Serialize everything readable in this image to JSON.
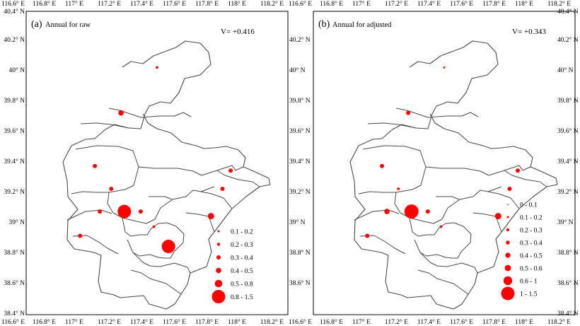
{
  "colors": {
    "dot": "#ff0000",
    "boundary": "#4a4a4a",
    "frame": "#000000"
  },
  "axes": {
    "lon_ticks": [
      "116.6° E",
      "116.8° E",
      "117° E",
      "117.2° E",
      "117.4° E",
      "117.6° E",
      "117.8° E",
      "118° E",
      "118.2° E"
    ],
    "lat_ticks_left": [
      "40.4° N",
      "40.2° N",
      "40° N",
      "39.8° N",
      "39.6° N",
      "39.4° N",
      "39.2° N",
      "39° N",
      "38.8° N",
      "38.6° N",
      "38.4° N"
    ],
    "lat_ticks_mid": [
      "40.2° N",
      "40° N",
      "39.8° N",
      "39.6° N",
      "39.4° N",
      "39.2° N",
      "39° N",
      "38.8° N",
      "38.6° N"
    ],
    "lat_ticks_right": [
      "40.4° N",
      "40.2° N",
      "40° N",
      "39.8° N",
      "39.6° N",
      "39.4° N",
      "39.2° N",
      "39° N",
      "38.8° N",
      "38.6° N",
      "38.4° N"
    ]
  },
  "panels": [
    {
      "id": "a",
      "label": "(a)",
      "subtitle": "Annual for raw",
      "v_value": "V= +0.416",
      "legend": [
        {
          "label": "0.1 - 0.2",
          "size": 1
        },
        {
          "label": "0.2 - 0.3",
          "size": 2
        },
        {
          "label": "0.3 - 0.4",
          "size": 3
        },
        {
          "label": "0.4 - 0.5",
          "size": 4
        },
        {
          "label": "0.5 - 0.8",
          "size": 5
        },
        {
          "label": "0.8 - 1.5",
          "size": 6
        }
      ],
      "stations": [
        {
          "lon": 117.4,
          "lat": 40.03,
          "size": 1
        },
        {
          "lon": 117.18,
          "lat": 39.73,
          "size": 3
        },
        {
          "lon": 117.02,
          "lat": 39.38,
          "size": 2
        },
        {
          "lon": 117.85,
          "lat": 39.35,
          "size": 2
        },
        {
          "lon": 117.12,
          "lat": 39.23,
          "size": 2
        },
        {
          "lon": 117.8,
          "lat": 39.23,
          "size": 2
        },
        {
          "lon": 117.05,
          "lat": 39.08,
          "size": 2
        },
        {
          "lon": 117.2,
          "lat": 39.08,
          "size": 6
        },
        {
          "lon": 117.3,
          "lat": 39.08,
          "size": 2
        },
        {
          "lon": 117.73,
          "lat": 39.05,
          "size": 4
        },
        {
          "lon": 117.38,
          "lat": 38.98,
          "size": 1
        },
        {
          "lon": 116.93,
          "lat": 38.92,
          "size": 2
        },
        {
          "lon": 117.47,
          "lat": 38.85,
          "size": 6
        }
      ]
    },
    {
      "id": "b",
      "label": "(b)",
      "subtitle": "Annual for adjusted",
      "v_value": "V= +0.343",
      "legend": [
        {
          "label": "0 - 0.1",
          "size": 0
        },
        {
          "label": "0.1 - 0.2",
          "size": 1
        },
        {
          "label": "0.2 - 0.3",
          "size": 2
        },
        {
          "label": "0.3 - 0.4",
          "size": 3
        },
        {
          "label": "0.4 - 0.5",
          "size": 4
        },
        {
          "label": "0.5 - 0.6",
          "size": 5
        },
        {
          "label": "0.6 - 1",
          "size": 6
        },
        {
          "label": "1 - 1.5",
          "size": 7
        }
      ],
      "stations": [
        {
          "lon": 117.4,
          "lat": 40.03,
          "size": 0
        },
        {
          "lon": 117.18,
          "lat": 39.73,
          "size": 2
        },
        {
          "lon": 117.02,
          "lat": 39.38,
          "size": 2
        },
        {
          "lon": 117.85,
          "lat": 39.35,
          "size": 2
        },
        {
          "lon": 117.12,
          "lat": 39.23,
          "size": 1
        },
        {
          "lon": 117.8,
          "lat": 39.23,
          "size": 2
        },
        {
          "lon": 117.05,
          "lat": 39.08,
          "size": 3
        },
        {
          "lon": 117.2,
          "lat": 39.08,
          "size": 7
        },
        {
          "lon": 117.3,
          "lat": 39.08,
          "size": 2
        },
        {
          "lon": 117.73,
          "lat": 39.05,
          "size": 4
        },
        {
          "lon": 117.38,
          "lat": 38.98,
          "size": 1
        },
        {
          "lon": 116.93,
          "lat": 38.92,
          "size": 2
        }
      ]
    }
  ]
}
